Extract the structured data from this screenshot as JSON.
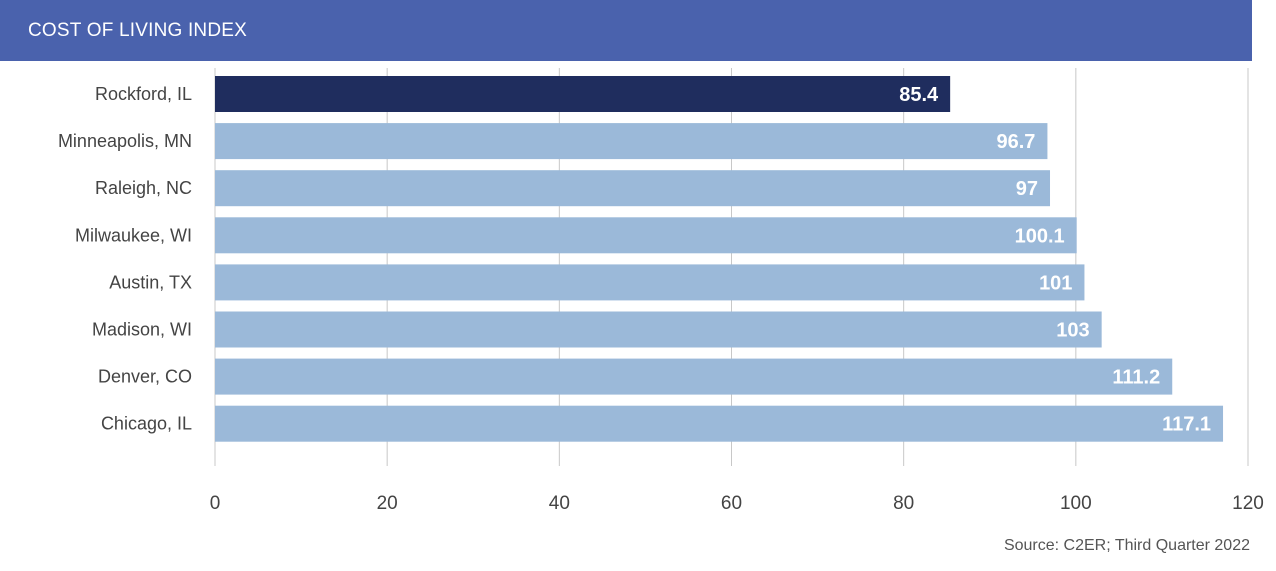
{
  "header": {
    "title": "COST OF LIVING INDEX"
  },
  "footer": {
    "source": "Source: C2ER; Third Quarter 2022"
  },
  "colors": {
    "header": "#4a62ad",
    "highlight": "#1f2d5e",
    "bar": "#9bb9d9",
    "grid": "#c8c8c8",
    "text": "#444444"
  },
  "chart_data": {
    "type": "bar",
    "orientation": "horizontal",
    "title": "COST OF LIVING INDEX",
    "categories": [
      "Rockford, IL",
      "Minneapolis, MN",
      "Raleigh, NC",
      "Milwaukee, WI",
      "Austin, TX",
      "Madison, WI",
      "Denver, CO",
      "Chicago, IL"
    ],
    "values": [
      85.4,
      96.7,
      97,
      100.1,
      101,
      103,
      111.2,
      117.1
    ],
    "value_labels": [
      "85.4",
      "96.7",
      "97",
      "100.1",
      "101",
      "103",
      "111.2",
      "117.1"
    ],
    "highlighted_category": "Rockford, IL",
    "xlim": [
      0,
      120
    ],
    "xticks": [
      0,
      20,
      40,
      60,
      80,
      100,
      120
    ],
    "grid": true,
    "legend": "none"
  }
}
